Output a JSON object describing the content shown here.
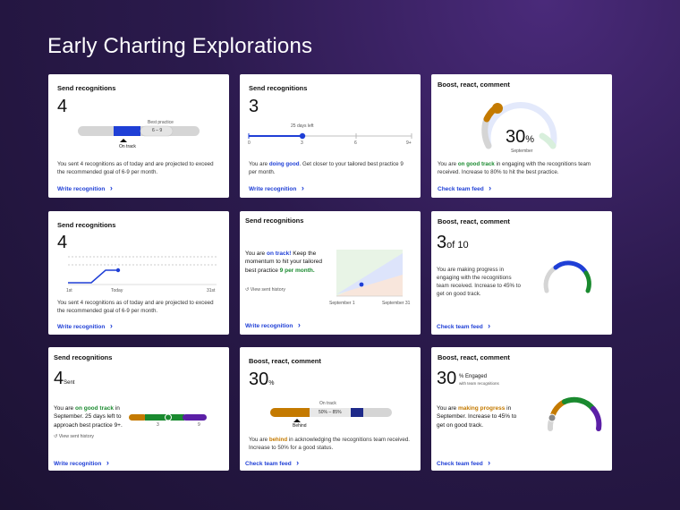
{
  "page": {
    "title": "Early Charting Explorations"
  },
  "c1": {
    "title": "Send recognitions",
    "count": "4",
    "best_label": "Best practice",
    "range_label": "6 – 9",
    "marker_label": "On track",
    "desc": "You sent 4 recognitions as of today and are projected to exceed the recommended goal of 6-9 per month.",
    "link": "Write recognition"
  },
  "c2": {
    "title": "Send recognitions",
    "count": "3",
    "days_left": "25 days left",
    "ticks": [
      "0",
      "3",
      "6",
      "9+"
    ],
    "desc_pre": "You are ",
    "desc_em": "doing good",
    "desc_post": ". Get closer to your tailored best practice 9 per month.",
    "link": "Write recognition"
  },
  "c3": {
    "title": "Boost, react, comment",
    "percent": "30",
    "percent_sign": "%",
    "sub": "September",
    "desc_pre": "You are ",
    "desc_em": "on good track",
    "desc_post": " in engaging with the recognitions team received. Increase to 80% to hit the best practice.",
    "link": "Check team feed",
    "progress": 0.3
  },
  "c4": {
    "title": "Send recognitions",
    "count": "4",
    "axis": [
      "1st",
      "Today",
      "31st"
    ],
    "desc": "You sent 4 recognitions as of today and are projected to exceed the recommended goal of 6-9 per month.",
    "link": "Write recognition"
  },
  "c5": {
    "title": "Send recognitions",
    "t1": "You are ",
    "t2": "on track!",
    "t3": " Keep the momentum to hit your tailored best practice ",
    "t4": "9 per month.",
    "history": "View sent history",
    "x_start": "September 1",
    "x_end": "September 31",
    "link": "Write recognition"
  },
  "c6": {
    "title": "Boost, react, comment",
    "count": "3",
    "of": "of 10",
    "desc": "You are making progress in engaging with the recognitions team received. Increase to 45% to get on good track.",
    "link": "Check team feed",
    "progress": 0.3
  },
  "c7": {
    "title": "Send recognitions",
    "count": "4",
    "unit": "Sent",
    "t1": "You are ",
    "t2": "on good track",
    "t3": " in September. 25 days left to approach best practice 9+.",
    "history": "View sent history",
    "ticks": [
      "3",
      "9"
    ],
    "link": "Write recognition"
  },
  "c8": {
    "title": "Boost, react, comment",
    "percent": "30",
    "percent_sign": "%",
    "top_label": "On track",
    "range_label": "50% – 85%",
    "marker_label": "Behind",
    "t1": "You are ",
    "t2": "behind",
    "t3": " in acknowledging the recognitions team received. Increase to 50% for a good status.",
    "link": "Check team feed",
    "progress": 0.3
  },
  "c9": {
    "title": "Boost, react, comment",
    "percent": "30",
    "percent_sign": "% Engaged",
    "sub": "with team recognitions",
    "t1": "You are ",
    "t2": "making progress",
    "t3": " in September. Increase to 45% to get on good track.",
    "link": "Check team feed",
    "progress": 0.3
  },
  "colors": {
    "blue": "#1f3fd6",
    "green": "#1a8a2f",
    "orange": "#c47a00",
    "purple": "#5b1fa6",
    "grey": "#d5d5d5"
  }
}
